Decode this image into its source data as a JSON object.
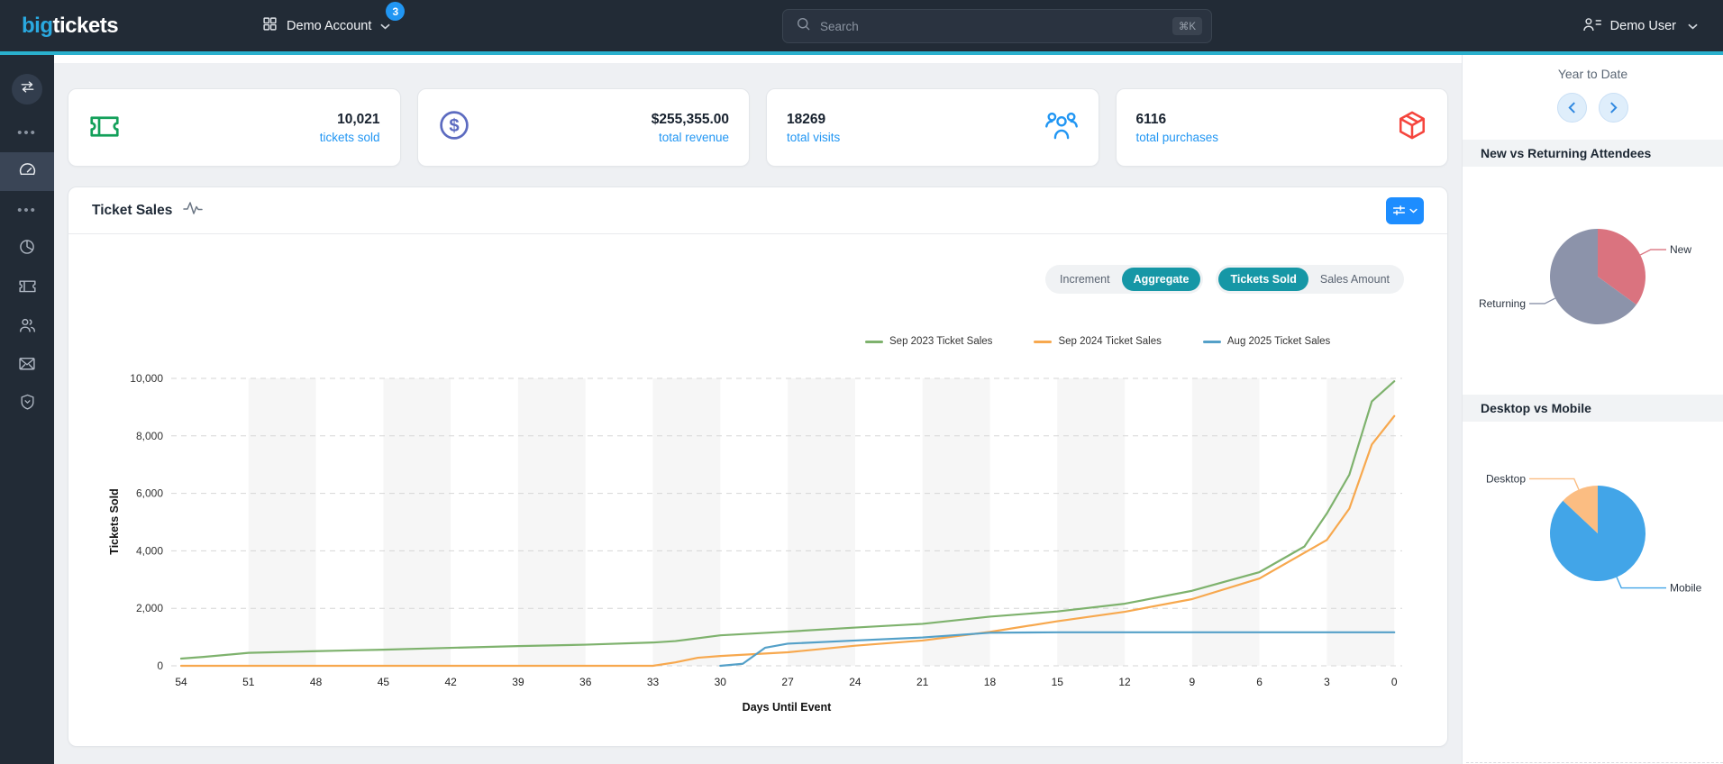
{
  "header": {
    "logo": {
      "part1": "big",
      "part2": "tickets"
    },
    "account": {
      "label": "Demo Account",
      "badge": "3"
    },
    "search": {
      "placeholder": "Search",
      "shortcut": "⌘K"
    },
    "user": {
      "label": "Demo User"
    }
  },
  "sidebar": {
    "items": [
      "transfer-arrows",
      "ellipsis",
      "dashboard (active)",
      "ellipsis",
      "pie-chart",
      "ticket",
      "users",
      "mail",
      "shield"
    ]
  },
  "stat_cards": [
    {
      "value": "10,021",
      "label": "tickets sold",
      "icon": "ticket-icon",
      "icon_color": "#13a05a",
      "icon_side": "left"
    },
    {
      "value": "$255,355.00",
      "label": "total revenue",
      "icon": "dollar-circle-icon",
      "icon_color": "#5c6bc0",
      "icon_side": "left"
    },
    {
      "value": "18269",
      "label": "total visits",
      "icon": "people-group-icon",
      "icon_color": "#2196f3",
      "icon_side": "right"
    },
    {
      "value": "6116",
      "label": "total purchases",
      "icon": "package-box-icon",
      "icon_color": "#f5453d",
      "icon_side": "right"
    }
  ],
  "ticket_sales": {
    "title": "Ticket Sales",
    "toggle_mode": {
      "options": [
        "Increment",
        "Aggregate"
      ],
      "active": "Aggregate"
    },
    "toggle_metric": {
      "options": [
        "Tickets Sold",
        "Sales Amount"
      ],
      "active": "Tickets Sold"
    }
  },
  "right_panel": {
    "period_label": "Year to Date",
    "sections": [
      {
        "title": "New vs Returning Attendees"
      },
      {
        "title": "Desktop vs Mobile"
      }
    ]
  },
  "chart_data": [
    {
      "type": "line",
      "title": "Ticket Sales",
      "xlabel": "Days Until Event",
      "ylabel": "Tickets Sold",
      "x_reversed": true,
      "x_ticks": [
        54,
        51,
        48,
        45,
        42,
        39,
        36,
        33,
        30,
        27,
        24,
        21,
        18,
        15,
        12,
        9,
        6,
        3,
        0
      ],
      "y_ticks": [
        0,
        2000,
        4000,
        6000,
        8000,
        10000
      ],
      "y_tick_labels": [
        "0",
        "2,000",
        "4,000",
        "6,000",
        "8,000",
        "10,000"
      ],
      "ylim": [
        0,
        10000
      ],
      "grid": "dashed-horizontal",
      "band_shading": "alternating-3-day",
      "legend_position": "top",
      "series": [
        {
          "name": "Sep 2023 Ticket Sales",
          "color": "#7eb26d",
          "points": [
            [
              54,
              250
            ],
            [
              53,
              310
            ],
            [
              51,
              450
            ],
            [
              48,
              510
            ],
            [
              45,
              560
            ],
            [
              42,
              625
            ],
            [
              39,
              685
            ],
            [
              36,
              735
            ],
            [
              33,
              810
            ],
            [
              32,
              860
            ],
            [
              30,
              1060
            ],
            [
              27,
              1190
            ],
            [
              24,
              1330
            ],
            [
              21,
              1460
            ],
            [
              18,
              1710
            ],
            [
              15,
              1890
            ],
            [
              12,
              2160
            ],
            [
              9,
              2610
            ],
            [
              6,
              3260
            ],
            [
              4,
              4150
            ],
            [
              3,
              5300
            ],
            [
              2,
              6650
            ],
            [
              1,
              9200
            ],
            [
              0,
              9900
            ]
          ]
        },
        {
          "name": "Sep 2024 Ticket Sales",
          "color": "#f7a84e",
          "points": [
            [
              54,
              0
            ],
            [
              33,
              0
            ],
            [
              32,
              120
            ],
            [
              31,
              280
            ],
            [
              30,
              340
            ],
            [
              27,
              470
            ],
            [
              24,
              700
            ],
            [
              21,
              880
            ],
            [
              18,
              1180
            ],
            [
              15,
              1550
            ],
            [
              12,
              1880
            ],
            [
              9,
              2320
            ],
            [
              6,
              3040
            ],
            [
              3,
              4380
            ],
            [
              2,
              5470
            ],
            [
              1,
              7700
            ],
            [
              0,
              8690
            ]
          ]
        },
        {
          "name": "Aug 2025 Ticket Sales",
          "color": "#54a0c8",
          "points": [
            [
              30,
              0
            ],
            [
              29,
              70
            ],
            [
              28,
              630
            ],
            [
              27,
              770
            ],
            [
              24,
              880
            ],
            [
              21,
              985
            ],
            [
              18,
              1150
            ],
            [
              15,
              1165
            ],
            [
              12,
              1165
            ],
            [
              9,
              1165
            ],
            [
              6,
              1165
            ],
            [
              3,
              1165
            ],
            [
              0,
              1165
            ]
          ]
        }
      ]
    },
    {
      "type": "pie",
      "title": "New vs Returning Attendees",
      "slices": [
        {
          "label": "New",
          "value": 35,
          "color": "#da737f"
        },
        {
          "label": "Returning",
          "value": 65,
          "color": "#8c93aa"
        }
      ]
    },
    {
      "type": "pie",
      "title": "Desktop vs Mobile",
      "slices": [
        {
          "label": "Mobile",
          "value": 87,
          "color": "#42a5e8"
        },
        {
          "label": "Desktop",
          "value": 13,
          "color": "#fbbd82"
        }
      ]
    }
  ]
}
